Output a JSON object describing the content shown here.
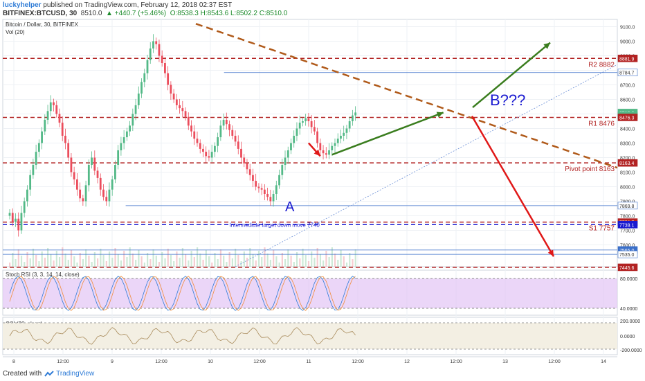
{
  "header": {
    "user": "luckyhelper",
    "published": " published on TradingView.com, February 12, 2018 02:37 EST",
    "symbol": "BITFINEX:BTCUSD, 30",
    "price": "8510.0",
    "change": "▲ +440.7 (+5.46%)",
    "ohlc": "O:8538.3 H:8543.6 L:8502.2 C:8510.0"
  },
  "pane_labels": {
    "main": "Bitcoin / Dollar, 30, BITFINEX",
    "vol": "Vol (20)",
    "rsi": "Stoch RSI (3, 3, 14, 14, close)",
    "cci": "CCI (20, close)"
  },
  "footer": {
    "created": "Created with",
    "brand": "TradingView"
  },
  "colors": {
    "bg": "#ffffff",
    "grid": "#eef1f5",
    "up": "#53b987",
    "down": "#eb4d5c",
    "level_red": "#b22222",
    "trend_brown": "#b05a1a",
    "arrow_green": "#3a7d1e",
    "arrow_red": "#e01818",
    "blue_text": "#1a1ad0",
    "rsi_fill": "#e3c4f5"
  },
  "chart_data": {
    "type": "candlestick",
    "title": "Bitcoin / Dollar, 30, BITFINEX",
    "price_axis": {
      "min": 7450,
      "max": 9150,
      "ticks": [
        7600,
        7700,
        7800,
        7900,
        8000,
        8100,
        8200,
        8300,
        8400,
        8500,
        8600,
        8700,
        8800,
        8900,
        9000,
        9100
      ]
    },
    "time_axis": {
      "labels": [
        "8",
        "12:00",
        "9",
        "12:00",
        "10",
        "12:00",
        "11",
        "12:00",
        "12",
        "12:00",
        "13",
        "12:00",
        "14"
      ]
    },
    "price_tags": [
      {
        "value": 8881.9,
        "text": "8881.9",
        "color": "#b22222"
      },
      {
        "value": 8784.7,
        "text": "8784.7",
        "color": "#ffffff"
      },
      {
        "value": 8510.0,
        "text": "8510.0",
        "color": "#53b987"
      },
      {
        "value": 8490,
        "text": "22:19",
        "color": "#53b987"
      },
      {
        "value": 8476.3,
        "text": "8476.3",
        "color": "#b22222"
      },
      {
        "value": 8163.4,
        "text": "8163.4",
        "color": "#b22222"
      },
      {
        "value": 7869.8,
        "text": "7869.8",
        "color": "#ffffff"
      },
      {
        "value": 7756.7,
        "text": "7756.7",
        "color": "#b22222"
      },
      {
        "value": 7739.1,
        "text": "7739.1",
        "color": "#1a1ad0"
      },
      {
        "value": 7565.0,
        "text": "7565.0",
        "color": "#3a6fc9"
      },
      {
        "value": 7535.0,
        "text": "7535.0",
        "color": "#ffffff"
      },
      {
        "value": 7445.6,
        "text": "7445.6",
        "color": "#b22222"
      }
    ],
    "levels": [
      {
        "value": 8881.9,
        "label": "R2 8882",
        "style": "dashed",
        "color": "#b22222"
      },
      {
        "value": 8476.3,
        "label": "R1 8476",
        "style": "dashed",
        "color": "#b22222"
      },
      {
        "value": 8163.4,
        "label": "Pivot point 8163",
        "style": "dashed",
        "color": "#b22222"
      },
      {
        "value": 7756.7,
        "label": "S1 7757",
        "style": "dashed",
        "color": "#b22222"
      },
      {
        "value": 7739.1,
        "label": "",
        "style": "dashed",
        "color": "#1a1ad0"
      },
      {
        "value": 7445.6,
        "label": "",
        "style": "dashed",
        "color": "#b22222"
      }
    ],
    "thin_lines": [
      {
        "value": 8784.7,
        "from": 0.36
      },
      {
        "value": 7869.8,
        "from": 0.2
      },
      {
        "value": 7565.0,
        "from": 0.0
      },
      {
        "value": 7535.0,
        "from": 0.0
      }
    ],
    "candles_close": [
      7820,
      7760,
      7780,
      7700,
      7820,
      7900,
      7980,
      8080,
      8150,
      8240,
      8300,
      8380,
      8460,
      8520,
      8580,
      8560,
      8500,
      8440,
      8350,
      8300,
      8200,
      8100,
      8050,
      7980,
      7920,
      7900,
      8010,
      8150,
      8200,
      8110,
      8060,
      7980,
      7930,
      7900,
      7980,
      8050,
      8150,
      8250,
      8300,
      8340,
      8380,
      8420,
      8500,
      8560,
      8640,
      8720,
      8780,
      8870,
      8950,
      9000,
      8980,
      8900,
      8850,
      8780,
      8700,
      8640,
      8600,
      8560,
      8540,
      8520,
      8480,
      8420,
      8380,
      8330,
      8300,
      8260,
      8240,
      8210,
      8200,
      8240,
      8280,
      8340,
      8420,
      8460,
      8430,
      8390,
      8350,
      8310,
      8260,
      8200,
      8160,
      8120,
      8080,
      8040,
      8000,
      7990,
      7980,
      7950,
      7930,
      7900,
      7950,
      8010,
      8080,
      8150,
      8200,
      8250,
      8300,
      8350,
      8400,
      8440,
      8450,
      8470,
      8450,
      8410,
      8380,
      8300,
      8250,
      8230,
      8220,
      8250,
      8280,
      8300,
      8330,
      8350,
      8370,
      8400,
      8450,
      8490,
      8510
    ],
    "annotations": [
      {
        "text": "A",
        "time_index": 94,
        "price": 7830
      },
      {
        "text": "B???",
        "time_index": 150,
        "price": 8560
      },
      {
        "text": "Intermediate target down move 7740",
        "time_index": 75,
        "price": 7725
      }
    ],
    "rsi_axis": {
      "ticks": [
        80,
        40
      ]
    },
    "cci_axis": {
      "ticks": [
        200,
        0,
        -200
      ]
    }
  },
  "axis_text": {
    "rsi_80": "80.0000",
    "rsi_40": "40.0000",
    "cci_200": "200.0000",
    "cci_0": "0.0000",
    "cci_m200": "-200.0000"
  }
}
